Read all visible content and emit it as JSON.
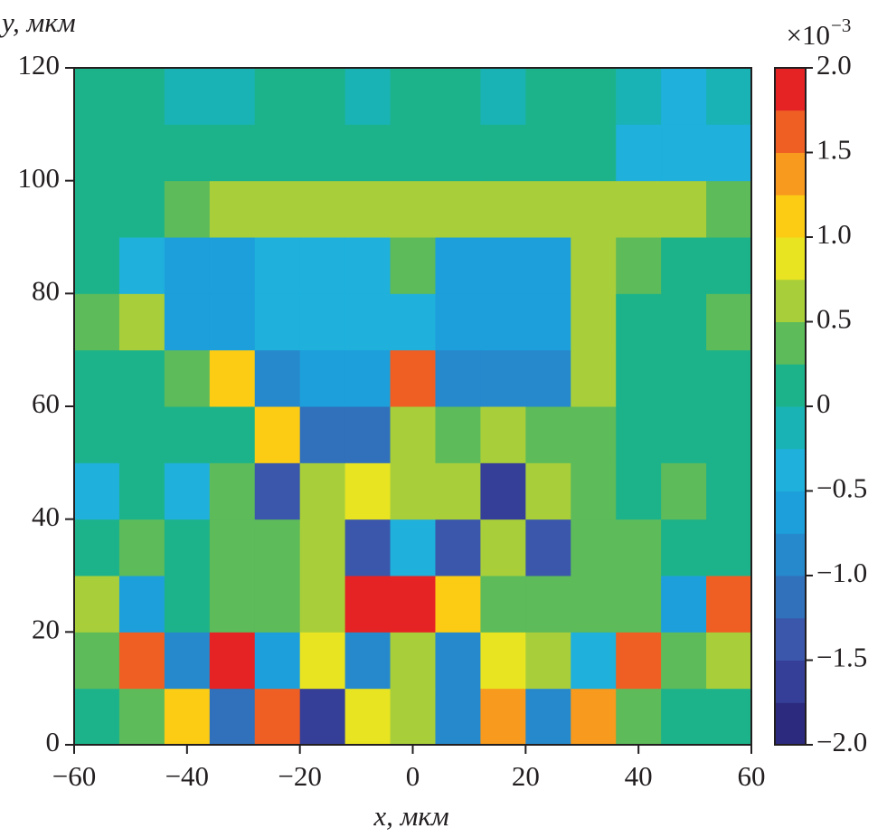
{
  "chart_data": {
    "type": "heatmap",
    "x_label": "x, мкм",
    "y_label": "y, мкм",
    "colorbar_multiplier": "×10",
    "colorbar_exponent": "−3",
    "x": [
      -56,
      -48,
      -40,
      -32,
      -24,
      -16,
      -8,
      0,
      8,
      16,
      24,
      32,
      40,
      48,
      56
    ],
    "y": [
      5,
      15,
      25,
      35,
      45,
      55,
      65,
      75,
      85,
      95,
      105,
      115
    ],
    "z": [
      [
        0,
        0.3,
        1.0,
        -1.2,
        1.6,
        -1.7,
        0.9,
        0.6,
        -1.0,
        1.4,
        -0.8,
        1.4,
        0.3,
        0.2,
        0
      ],
      [
        0.3,
        1.5,
        -0.8,
        1.8,
        -0.6,
        0.8,
        -1.0,
        0.7,
        -0.9,
        0.8,
        0.5,
        -0.5,
        1.6,
        0.4,
        0.6
      ],
      [
        0.5,
        -0.6,
        0.2,
        0.3,
        0.4,
        0.5,
        1.8,
        1.9,
        1.0,
        0.4,
        0.3,
        0.4,
        0.3,
        -0.6,
        1.6
      ],
      [
        0,
        0.3,
        0.2,
        0.3,
        0.4,
        0.6,
        -1.3,
        -0.4,
        -1.3,
        0.6,
        -1.3,
        0.4,
        0.3,
        0.2,
        0.2
      ],
      [
        -0.3,
        0.2,
        -0.3,
        0.3,
        -1.3,
        0.5,
        0.8,
        0.6,
        0.6,
        -1.6,
        0.7,
        0.3,
        0.2,
        0.3,
        0
      ],
      [
        0.2,
        0.1,
        0,
        0.2,
        1.0,
        -1.2,
        -1.2,
        0.5,
        0.3,
        0.5,
        0.3,
        0.3,
        0.2,
        0.1,
        0
      ],
      [
        0,
        0,
        0.3,
        1.2,
        -0.8,
        -0.6,
        -0.6,
        1.5,
        -0.8,
        -1.0,
        -0.9,
        0.5,
        0,
        0,
        0
      ],
      [
        0.3,
        0.5,
        -0.6,
        -0.6,
        -0.4,
        -0.4,
        -0.5,
        -0.5,
        -0.6,
        -0.6,
        -0.6,
        0.5,
        0.2,
        0,
        0.3
      ],
      [
        0,
        -0.4,
        -0.6,
        -0.6,
        -0.5,
        -0.4,
        -0.5,
        0.4,
        -0.6,
        -0.6,
        -0.6,
        0.6,
        0.3,
        0,
        0
      ],
      [
        0,
        0,
        0.3,
        0.6,
        0.6,
        0.5,
        0.6,
        0.7,
        0.6,
        0.6,
        0.6,
        0.5,
        0.5,
        0.5,
        0.3
      ],
      [
        0,
        0,
        0,
        0,
        0,
        0,
        0,
        0,
        0,
        0,
        0,
        0,
        -0.3,
        -0.5,
        -0.4
      ],
      [
        0,
        0,
        -0.1,
        -0.1,
        0,
        0,
        -0.1,
        0,
        0,
        -0.1,
        0,
        0,
        -0.2,
        -0.4,
        -0.2
      ]
    ],
    "xlim": [
      -60,
      60
    ],
    "ylim": [
      0,
      120
    ],
    "zlim": [
      -2,
      2
    ],
    "xticks": [
      {
        "value": -60,
        "label": "−60"
      },
      {
        "value": -40,
        "label": "−40"
      },
      {
        "value": -20,
        "label": "−20"
      },
      0,
      20,
      40,
      60
    ],
    "yticks": [
      0,
      20,
      40,
      60,
      80,
      100,
      120
    ],
    "zticks": [
      {
        "value": 2,
        "label": "2.0"
      },
      {
        "value": 1.5,
        "label": "1.5"
      },
      {
        "value": 1,
        "label": "1.0"
      },
      {
        "value": 0.5,
        "label": "0.5"
      },
      0,
      {
        "value": -0.5,
        "label": "−0.5"
      },
      {
        "value": -1,
        "label": "−1.0"
      },
      {
        "value": -1.5,
        "label": "−1.5"
      },
      {
        "value": -2,
        "label": "−2.0"
      }
    ],
    "colors": [
      "#2b2a7e",
      "#363f97",
      "#3a57ab",
      "#3170bb",
      "#2689cc",
      "#1d9fdb",
      "#1fb0dc",
      "#19b3b6",
      "#1db38a",
      "#5dbb5a",
      "#a8cf3a",
      "#e8e421",
      "#fccc14",
      "#f79a1d",
      "#ef5f24",
      "#e52325"
    ]
  }
}
